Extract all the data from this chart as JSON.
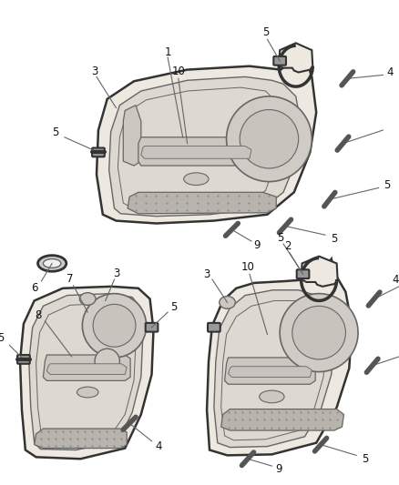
{
  "bg_color": "#ffffff",
  "lc": "#666666",
  "lc_dark": "#333333",
  "fig_width": 4.38,
  "fig_height": 5.33,
  "dpi": 100,
  "panel_face": "#ede8e0",
  "panel_inner": "#ddd8d0",
  "panel_dark": "#c8c3bc",
  "grille_face": "#b8b3ac",
  "speaker_face": "#d0cbc4",
  "handle_face": "#ccc8c0"
}
